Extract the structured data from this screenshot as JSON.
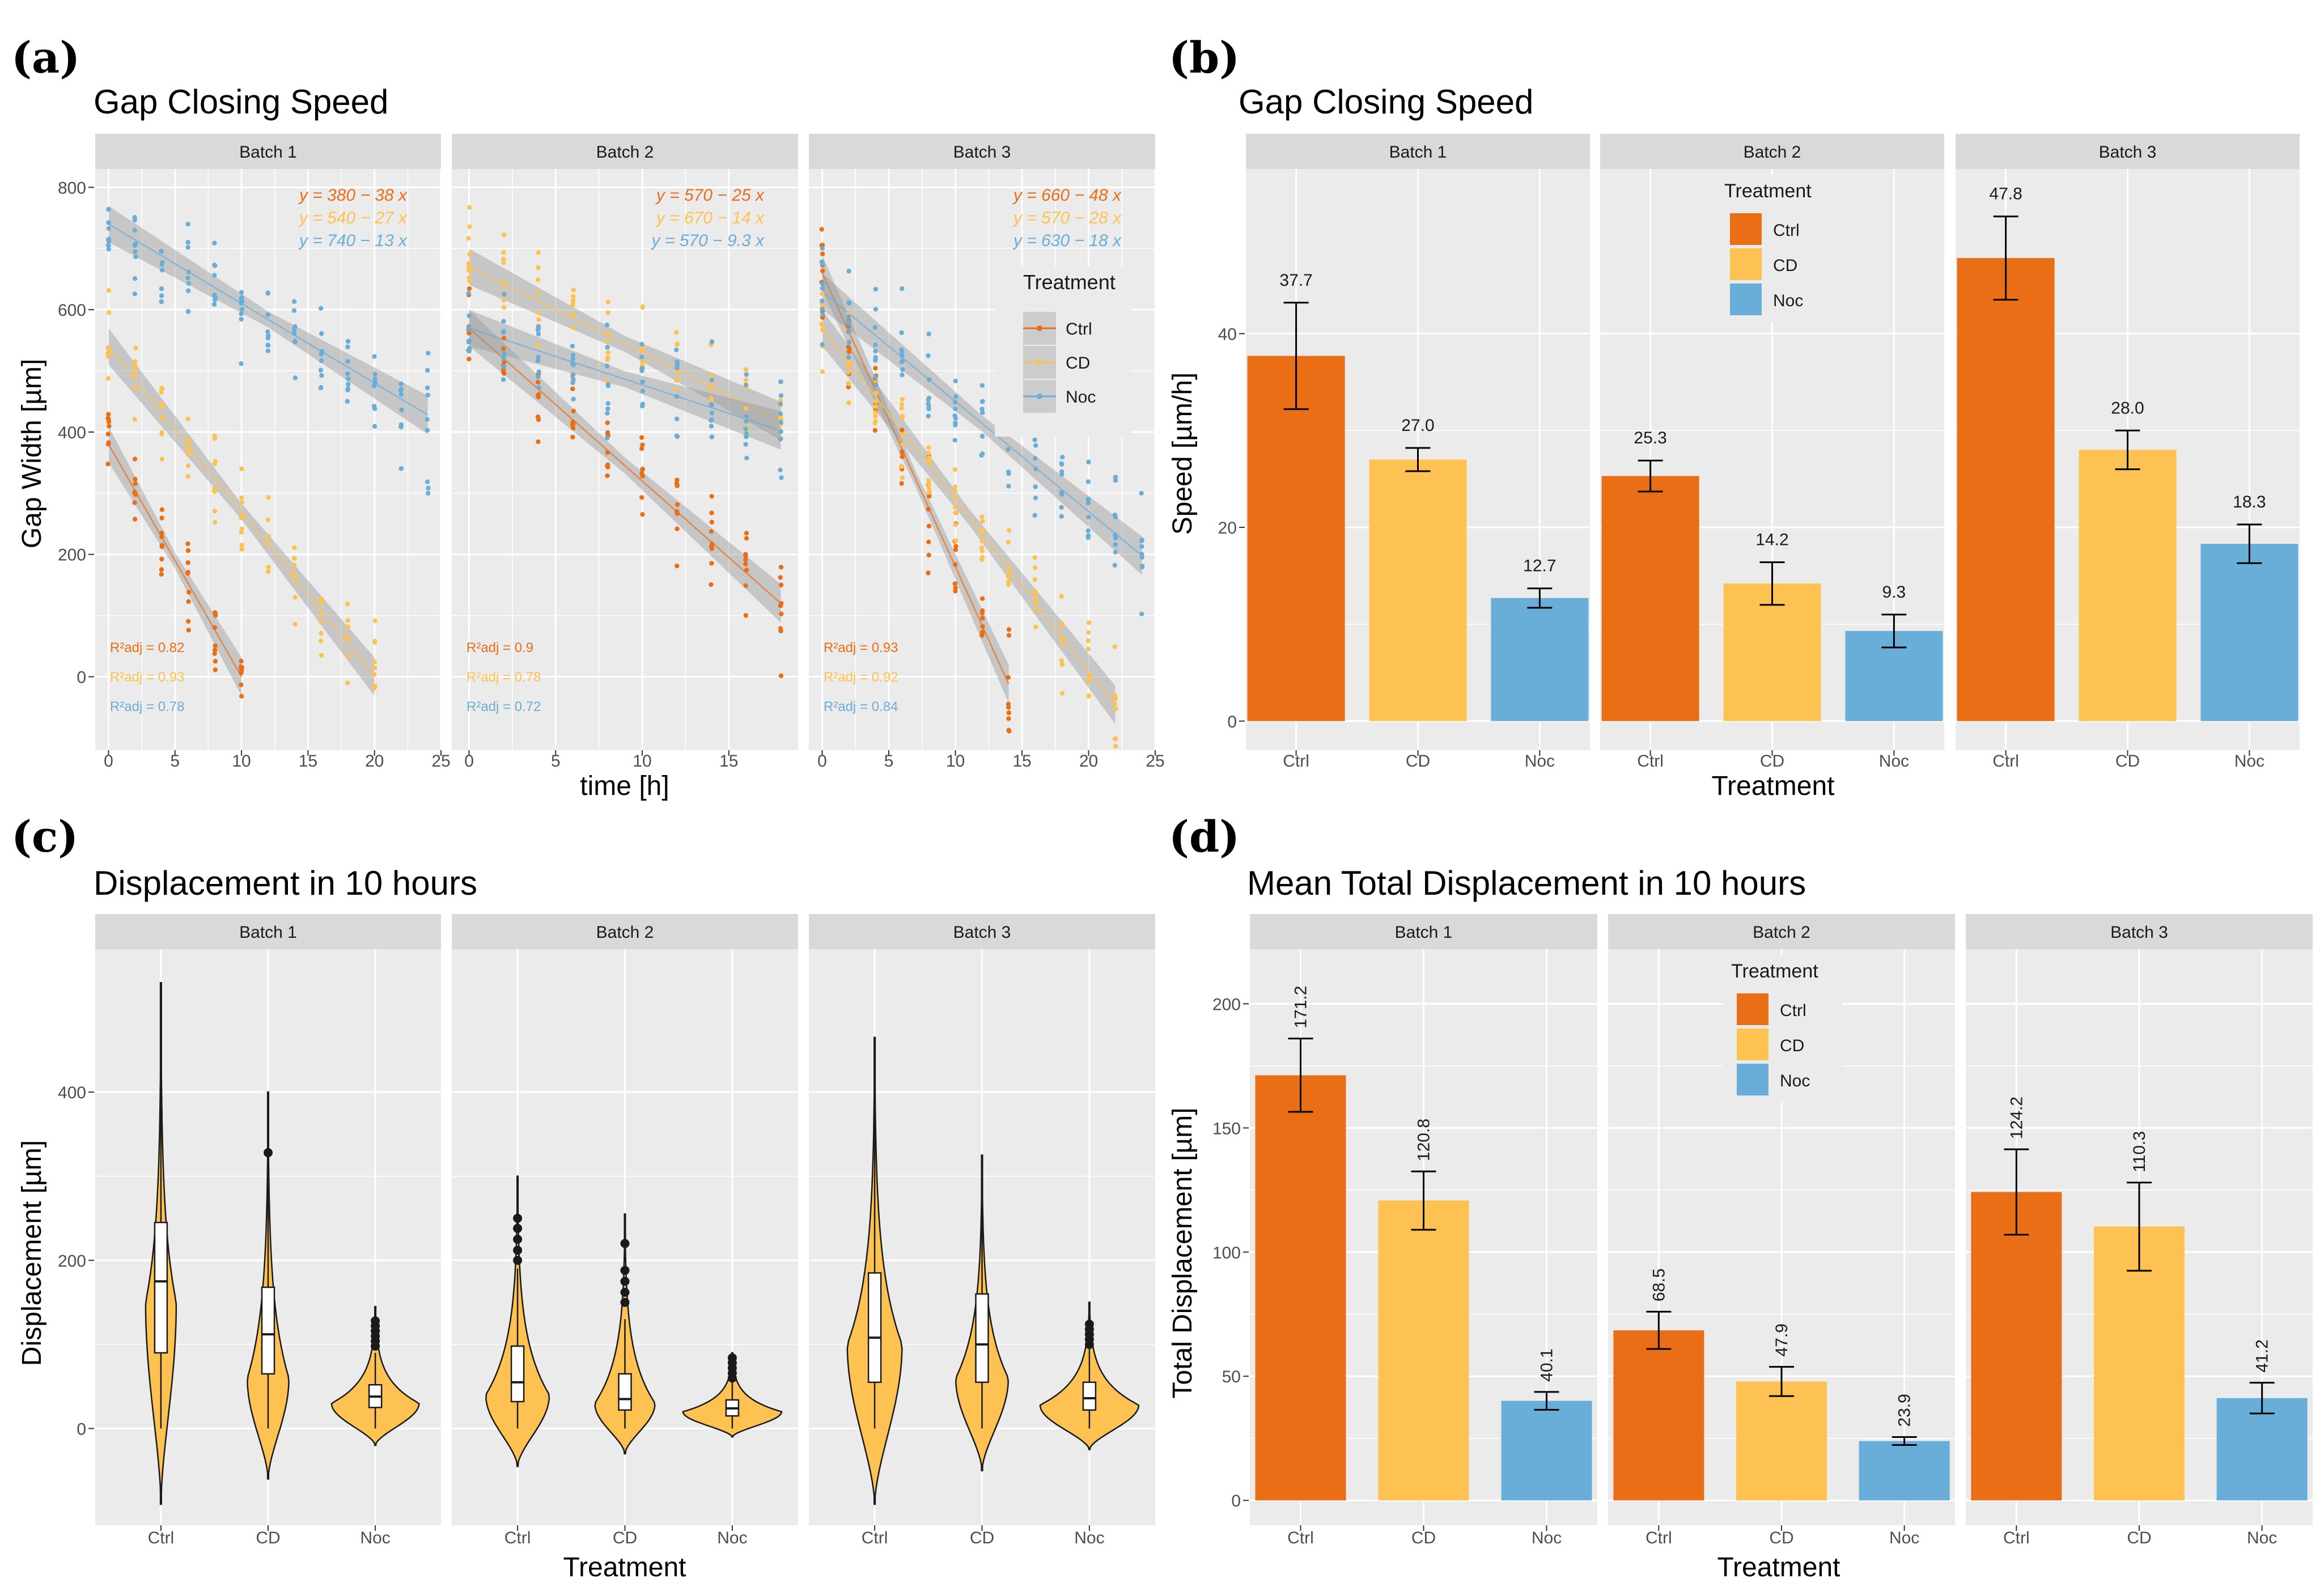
{
  "panel_labels": [
    "(a)",
    "(b)",
    "(c)",
    "(d)"
  ],
  "colors": {
    "Ctrl": "#e96e16",
    "CD": "#fdc251",
    "Noc": "#69aed8",
    "panel_bg": "#ebebeb",
    "strip_bg": "#d9d9d9",
    "grid": "#ffffff",
    "ribbon": "#999999",
    "violin_fill": "#fdc251"
  },
  "chart_data": [
    {
      "id": "a",
      "type": "scatter",
      "title": "Gap Closing Speed",
      "xlabel": "time [h]",
      "ylabel": "Gap Width [µm]",
      "ylim": [
        -120,
        830
      ],
      "yticks": [
        0,
        200,
        400,
        600,
        800
      ],
      "grid": true,
      "legend": {
        "title": "Treatment",
        "entries": [
          "Ctrl",
          "CD",
          "Noc"
        ],
        "placement": "right"
      },
      "facets": [
        {
          "name": "Batch 1",
          "xlim": [
            -1,
            25
          ],
          "xticks": [
            0,
            5,
            10,
            15,
            20,
            25
          ],
          "fits": [
            {
              "group": "Ctrl",
              "intercept": 380,
              "slope": -38,
              "x": [
                0,
                10
              ],
              "equation": "y = 380 − 38 x",
              "r2": "R²adj = 0.82"
            },
            {
              "group": "CD",
              "intercept": 540,
              "slope": -27,
              "x": [
                0,
                20
              ],
              "equation": "y = 540 − 27 x",
              "r2": "R²adj = 0.93"
            },
            {
              "group": "Noc",
              "intercept": 740,
              "slope": -13,
              "x": [
                0,
                24
              ],
              "equation": "y = 740 − 13 x",
              "r2": "R²adj = 0.78"
            }
          ],
          "times": {
            "Ctrl": [
              0,
              2,
              4,
              6,
              8,
              10
            ],
            "CD": [
              0,
              2,
              4,
              6,
              8,
              10,
              12,
              14,
              16,
              18,
              20
            ],
            "Noc": [
              0,
              2,
              4,
              6,
              8,
              10,
              12,
              14,
              16,
              18,
              20,
              22,
              24
            ]
          }
        },
        {
          "name": "Batch 2",
          "xlim": [
            -1,
            19
          ],
          "xticks": [
            0,
            5,
            10,
            15
          ],
          "fits": [
            {
              "group": "Ctrl",
              "intercept": 570,
              "slope": -25,
              "x": [
                0,
                18
              ],
              "equation": "y = 570 − 25 x",
              "r2": "R²adj = 0.9"
            },
            {
              "group": "CD",
              "intercept": 670,
              "slope": -14,
              "x": [
                0,
                18
              ],
              "equation": "y = 670 − 14 x",
              "r2": "R²adj = 0.78"
            },
            {
              "group": "Noc",
              "intercept": 570,
              "slope": -9.3,
              "x": [
                0,
                18
              ],
              "equation": "y = 570 − 9.3 x",
              "r2": "R²adj = 0.72"
            }
          ],
          "times": {
            "Ctrl": [
              0,
              2,
              4,
              6,
              8,
              10,
              12,
              14,
              16,
              18
            ],
            "CD": [
              0,
              2,
              4,
              6,
              8,
              10,
              12,
              14,
              16,
              18
            ],
            "Noc": [
              0,
              2,
              4,
              6,
              8,
              10,
              12,
              14,
              16,
              18
            ]
          }
        },
        {
          "name": "Batch 3",
          "xlim": [
            -1,
            25
          ],
          "xticks": [
            0,
            5,
            10,
            15,
            20,
            25
          ],
          "fits": [
            {
              "group": "Ctrl",
              "intercept": 660,
              "slope": -48,
              "x": [
                0,
                14
              ],
              "equation": "y = 660 − 48 x",
              "r2": "R²adj = 0.93"
            },
            {
              "group": "CD",
              "intercept": 570,
              "slope": -28,
              "x": [
                0,
                22
              ],
              "equation": "y = 570 − 28 x",
              "r2": "R²adj = 0.92"
            },
            {
              "group": "Noc",
              "intercept": 630,
              "slope": -18,
              "x": [
                0,
                24
              ],
              "equation": "y = 630 − 18 x",
              "r2": "R²adj = 0.84"
            }
          ],
          "times": {
            "Ctrl": [
              0,
              2,
              4,
              6,
              8,
              10,
              12,
              14
            ],
            "CD": [
              0,
              2,
              4,
              6,
              8,
              10,
              12,
              14,
              16,
              18,
              20,
              22
            ],
            "Noc": [
              0,
              2,
              4,
              6,
              8,
              10,
              12,
              14,
              16,
              18,
              20,
              22,
              24
            ]
          }
        }
      ]
    },
    {
      "id": "b",
      "type": "bar",
      "title": "Gap Closing Speed",
      "xlabel": "Treatment",
      "ylabel": "Speed [µm/h]",
      "ylim": [
        -3,
        57
      ],
      "yticks": [
        0,
        20,
        40
      ],
      "categories": [
        "Ctrl",
        "CD",
        "Noc"
      ],
      "label_rotation": 0,
      "legend": {
        "title": "Treatment",
        "entries": [
          "Ctrl",
          "CD",
          "Noc"
        ],
        "placement": "inside-batch-2"
      },
      "facets": [
        {
          "name": "Batch 1",
          "values": [
            37.7,
            27.0,
            12.7
          ],
          "labels": [
            "37.7",
            "27.0",
            "12.7"
          ],
          "err_low": [
            32.2,
            25.8,
            11.7
          ],
          "err_high": [
            43.2,
            28.2,
            13.7
          ]
        },
        {
          "name": "Batch 2",
          "values": [
            25.3,
            14.2,
            9.3
          ],
          "labels": [
            "25.3",
            "14.2",
            "9.3"
          ],
          "err_low": [
            23.7,
            12.0,
            7.6
          ],
          "err_high": [
            26.9,
            16.4,
            11.0
          ]
        },
        {
          "name": "Batch 3",
          "values": [
            47.8,
            28.0,
            18.3
          ],
          "labels": [
            "47.8",
            "28.0",
            "18.3"
          ],
          "err_low": [
            43.5,
            26.0,
            16.3
          ],
          "err_high": [
            52.1,
            30.0,
            20.3
          ]
        }
      ]
    },
    {
      "id": "c",
      "type": "violin",
      "title": "Displacement in 10 hours",
      "xlabel": "Treatment",
      "ylabel": "Displacement [µm]",
      "ylim": [
        -115,
        570
      ],
      "yticks": [
        0,
        200,
        400
      ],
      "categories": [
        "Ctrl",
        "CD",
        "Noc"
      ],
      "facets": [
        {
          "name": "Batch 1",
          "groups": [
            {
              "min": -90,
              "max": 530,
              "mode": 150,
              "width": 0.28,
              "q1": 90,
              "median": 175,
              "q3": 245,
              "whisker_low": 0,
              "whisker_high": 470,
              "outliers": []
            },
            {
              "min": -60,
              "max": 400,
              "mode": 60,
              "width": 0.38,
              "q1": 65,
              "median": 112,
              "q3": 168,
              "whisker_low": 0,
              "whisker_high": 310,
              "outliers": [
                328
              ]
            },
            {
              "min": -20,
              "max": 145,
              "mode": 30,
              "width": 0.8,
              "q1": 25,
              "median": 38,
              "q3": 52,
              "whisker_low": 0,
              "whisker_high": 90,
              "outliers": [
                98,
                104,
                110,
                116,
                122,
                128
              ]
            }
          ]
        },
        {
          "name": "Batch 2",
          "groups": [
            {
              "min": -45,
              "max": 300,
              "mode": 40,
              "width": 0.58,
              "q1": 32,
              "median": 55,
              "q3": 98,
              "whisker_low": 0,
              "whisker_high": 190,
              "outliers": [
                200,
                212,
                225,
                238,
                250
              ]
            },
            {
              "min": -30,
              "max": 255,
              "mode": 30,
              "width": 0.55,
              "q1": 22,
              "median": 35,
              "q3": 65,
              "whisker_low": 0,
              "whisker_high": 130,
              "outliers": [
                150,
                162,
                175,
                188,
                220
              ]
            },
            {
              "min": -10,
              "max": 90,
              "mode": 20,
              "width": 0.9,
              "q1": 15,
              "median": 24,
              "q3": 34,
              "whisker_low": 0,
              "whisker_high": 55,
              "outliers": [
                60,
                66,
                72,
                78,
                84
              ]
            }
          ]
        },
        {
          "name": "Batch 3",
          "groups": [
            {
              "min": -90,
              "max": 465,
              "mode": 100,
              "width": 0.5,
              "q1": 55,
              "median": 108,
              "q3": 185,
              "whisker_low": 0,
              "whisker_high": 380,
              "outliers": []
            },
            {
              "min": -50,
              "max": 325,
              "mode": 60,
              "width": 0.48,
              "q1": 55,
              "median": 100,
              "q3": 160,
              "whisker_low": 0,
              "whisker_high": 260,
              "outliers": []
            },
            {
              "min": -25,
              "max": 150,
              "mode": 28,
              "width": 0.9,
              "q1": 22,
              "median": 36,
              "q3": 55,
              "whisker_low": 0,
              "whisker_high": 95,
              "outliers": [
                100,
                106,
                112,
                118,
                124
              ]
            }
          ]
        }
      ]
    },
    {
      "id": "d",
      "type": "bar",
      "title": "Mean Total Displacement in 10 hours",
      "xlabel": "Treatment",
      "ylabel": "Total Displacement [µm]",
      "ylim": [
        -10,
        222
      ],
      "yticks": [
        0,
        50,
        100,
        150,
        200
      ],
      "categories": [
        "Ctrl",
        "CD",
        "Noc"
      ],
      "label_rotation": -90,
      "legend": {
        "title": "Treatment",
        "entries": [
          "Ctrl",
          "CD",
          "Noc"
        ],
        "placement": "inside-batch-2"
      },
      "facets": [
        {
          "name": "Batch 1",
          "values": [
            171.2,
            120.8,
            40.1
          ],
          "labels": [
            "171.2",
            "120.8",
            "40.1"
          ],
          "err_low": [
            156.5,
            109.0,
            36.5
          ],
          "err_high": [
            186.0,
            132.5,
            43.7
          ]
        },
        {
          "name": "Batch 2",
          "values": [
            68.5,
            47.9,
            23.9
          ],
          "labels": [
            "68.5",
            "47.9",
            "23.9"
          ],
          "err_low": [
            61.0,
            42.0,
            22.3
          ],
          "err_high": [
            76.0,
            53.8,
            25.5
          ]
        },
        {
          "name": "Batch 3",
          "values": [
            124.2,
            110.3,
            41.2
          ],
          "labels": [
            "124.2",
            "110.3",
            "41.2"
          ],
          "err_low": [
            107.0,
            92.5,
            35.0
          ],
          "err_high": [
            141.4,
            128.0,
            47.4
          ]
        }
      ]
    }
  ]
}
